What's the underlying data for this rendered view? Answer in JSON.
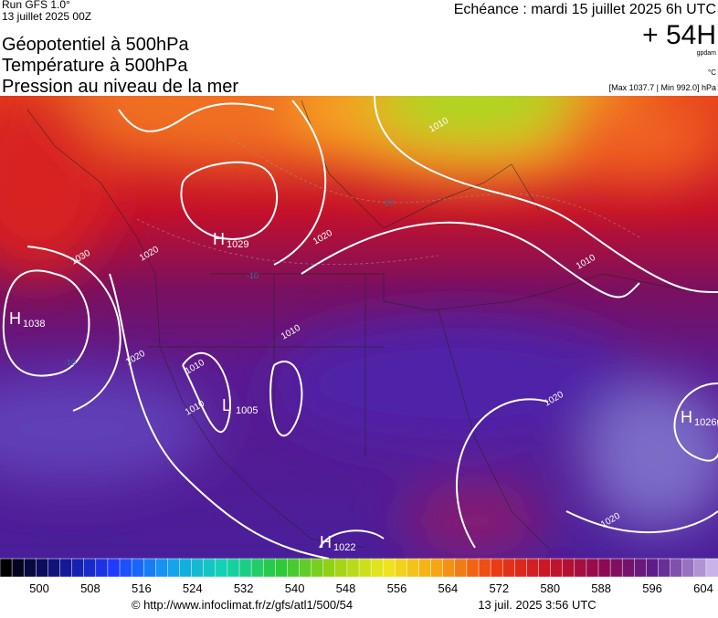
{
  "header": {
    "run": "Run GFS 1.0°",
    "date": "13 juillet 2025 00Z",
    "titles": [
      "Géopotentiel à 500hPa",
      "Température à 500hPa",
      "Pression au niveau de la mer"
    ],
    "echeance": "Echéance : mardi 15 juillet 2025 6h UTC",
    "offset": "+ 54H",
    "unit_geo": "gpdam",
    "unit_temp": "°C",
    "pressure_range": "[Max 1037.7 | Min 992.0] hPa"
  },
  "map": {
    "centers": [
      {
        "letter": "H",
        "value": "1029"
      },
      {
        "letter": "H",
        "value": "1038"
      },
      {
        "letter": "H",
        "value": "1026"
      },
      {
        "letter": "H",
        "value": "1022"
      },
      {
        "letter": "L",
        "value": "1005"
      }
    ],
    "isobar_labels": [
      "1010",
      "1020",
      "1020",
      "1030",
      "1020",
      "1010",
      "1010",
      "1010",
      "1020",
      "1020",
      "1010"
    ],
    "temp_labels": [
      "-20",
      "-10",
      "-10"
    ]
  },
  "scale": {
    "labels": [
      500,
      508,
      516,
      524,
      532,
      540,
      548,
      556,
      564,
      572,
      580,
      588,
      596,
      604
    ]
  },
  "footer": {
    "url": "© http://www.infoclimat.fr/z/gfs/atl1/500/54",
    "time": "13 juil. 2025  3:56 UTC"
  }
}
